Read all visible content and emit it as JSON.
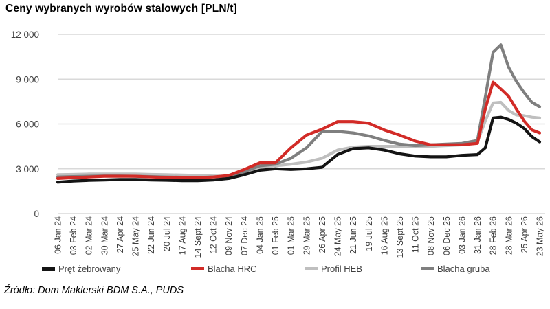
{
  "title": "Ceny wybranych wyrobów stalowych [PLN/t]",
  "source": "Źródło: Dom Maklerski BDM S.A., PUDS",
  "colors": {
    "black": "#141414",
    "red": "#d22b27",
    "light_gray": "#bfbfbf",
    "dark_gray": "#7f7f7f",
    "grid": "#d9d9d9",
    "axis_text": "#404040"
  },
  "legend": [
    {
      "label": "Pręt żebrowany",
      "color": "#141414"
    },
    {
      "label": "Blacha HRC",
      "color": "#d22b27"
    },
    {
      "label": "Profil HEB",
      "color": "#bfbfbf"
    },
    {
      "label": "Blacha gruba",
      "color": "#7f7f7f"
    }
  ],
  "chart_data": {
    "type": "line",
    "title": "Ceny wybranych wyrobów stalowych [PLN/t]",
    "ylabel": "PLN/t",
    "xlabel": "",
    "ylim": [
      0,
      12000
    ],
    "yticks": [
      0,
      3000,
      6000,
      9000,
      12000
    ],
    "ytick_labels": [
      "0",
      "3 000",
      "6 000",
      "9 000",
      "12 000"
    ],
    "grid": "horizontal",
    "legend_position": "bottom",
    "x_tick_labels": [
      "06 Jan 24",
      "03 Feb 24",
      "02 Mar 24",
      "30 Mar 24",
      "27 Apr 24",
      "25 May 24",
      "22 Jun 24",
      "20 Jul 24",
      "17 Aug 24",
      "14 Sept 24",
      "12 Oct 24",
      "09 Nov 24",
      "07 Dec 24",
      "04 Jan 25",
      "01 Feb 25",
      "01 Mar 25",
      "29 Mar 25",
      "26 Apr 25",
      "24 May 25",
      "21 Jun 25",
      "19 Jul 25",
      "16 Aug 25",
      "13 Sept 25",
      "11 Oct 25",
      "08 Nov 25",
      "06 Dec 25",
      "03 Jan 26",
      "31 Jan 26",
      "28 Feb 26",
      "28 Mar 26",
      "25 Apr 26",
      "23 May 26"
    ],
    "dates": [
      "06 Jan 24",
      "03 Feb 24",
      "02 Mar 24",
      "30 Mar 24",
      "27 Apr 24",
      "25 May 24",
      "22 Jun 24",
      "20 Jul 24",
      "17 Aug 24",
      "14 Sept 24",
      "12 Oct 24",
      "09 Nov 24",
      "07 Dec 24",
      "04 Jan 25",
      "01 Feb 25",
      "01 Mar 25",
      "29 Mar 25",
      "26 Apr 25",
      "24 May 25",
      "21 Jun 25",
      "19 Jul 25",
      "16 Aug 25",
      "13 Sept 25",
      "11 Oct 25",
      "08 Nov 25",
      "06 Dec 25",
      "03 Jan 26",
      "31 Jan 26",
      "14 Feb 26",
      "28 Feb 26",
      "14 Mar 26",
      "28 Mar 26",
      "11 Apr 26",
      "25 Apr 26",
      "09 May 26",
      "23 May 26"
    ],
    "series": [
      {
        "id": "profil-heb",
        "name": "Profil HEB",
        "color": "#bfbfbf",
        "values": [
          2600,
          2620,
          2650,
          2650,
          2650,
          2650,
          2620,
          2600,
          2580,
          2550,
          2520,
          2500,
          2700,
          3100,
          3200,
          3300,
          3450,
          3700,
          4250,
          4450,
          4500,
          4500,
          4500,
          4500,
          4500,
          4550,
          4600,
          4800,
          6200,
          7400,
          7450,
          6900,
          6600,
          6550,
          6450,
          6400
        ]
      },
      {
        "id": "blacha-gruba",
        "name": "Blacha gruba",
        "color": "#7f7f7f",
        "values": [
          2450,
          2480,
          2500,
          2520,
          2520,
          2500,
          2480,
          2450,
          2430,
          2420,
          2450,
          2500,
          2800,
          3200,
          3300,
          3700,
          4400,
          5500,
          5500,
          5400,
          5200,
          4900,
          4650,
          4550,
          4600,
          4650,
          4700,
          4900,
          7800,
          10800,
          11300,
          9800,
          8850,
          8100,
          7450,
          7150
        ]
      },
      {
        "id": "pret-zebrowany",
        "name": "Pręt żebrowany",
        "color": "#141414",
        "values": [
          2100,
          2180,
          2220,
          2250,
          2280,
          2280,
          2250,
          2230,
          2200,
          2200,
          2250,
          2350,
          2600,
          2900,
          3000,
          2950,
          3000,
          3100,
          3950,
          4350,
          4400,
          4250,
          4000,
          3850,
          3800,
          3800,
          3900,
          3950,
          4400,
          6400,
          6450,
          6300,
          6050,
          5700,
          5150,
          4800
        ]
      },
      {
        "id": "blacha-hrc",
        "name": "Blacha HRC",
        "color": "#d22b27",
        "values": [
          2350,
          2400,
          2450,
          2500,
          2500,
          2500,
          2450,
          2420,
          2400,
          2400,
          2450,
          2550,
          2950,
          3400,
          3400,
          4400,
          5250,
          5650,
          6150,
          6150,
          6050,
          5600,
          5250,
          4850,
          4600,
          4600,
          4600,
          4700,
          7000,
          8800,
          8350,
          7850,
          7000,
          6200,
          5600,
          5400
        ]
      }
    ]
  }
}
